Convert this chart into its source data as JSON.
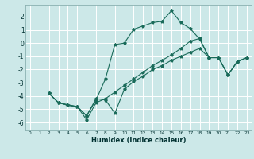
{
  "xlabel": "Humidex (Indice chaleur)",
  "bg_color": "#cce8e8",
  "grid_color": "#ffffff",
  "line_color": "#1a6b5a",
  "xlim": [
    -0.5,
    23.5
  ],
  "ylim": [
    -6.6,
    2.9
  ],
  "xticks": [
    0,
    1,
    2,
    3,
    4,
    5,
    6,
    7,
    8,
    9,
    10,
    11,
    12,
    13,
    14,
    15,
    16,
    17,
    18,
    19,
    20,
    21,
    22,
    23
  ],
  "yticks": [
    -6,
    -5,
    -4,
    -3,
    -2,
    -1,
    0,
    1,
    2
  ],
  "line1": {
    "x": [
      2,
      3,
      4,
      5,
      6,
      7,
      8,
      9,
      10,
      11,
      12,
      13,
      14,
      15,
      16,
      17,
      18,
      19,
      20,
      21,
      22,
      23
    ],
    "y": [
      -3.8,
      -4.5,
      -4.7,
      -4.8,
      -5.5,
      -4.3,
      -2.7,
      -0.1,
      0.0,
      1.05,
      1.3,
      1.55,
      1.65,
      2.45,
      1.55,
      1.1,
      0.3,
      -1.1,
      -1.1,
      -2.4,
      -1.4,
      -1.1
    ]
  },
  "line2": {
    "x": [
      2,
      3,
      5,
      6,
      7,
      8,
      9,
      10,
      11,
      12,
      13,
      14,
      15,
      16,
      17,
      18,
      19,
      20,
      21,
      22,
      23
    ],
    "y": [
      -3.8,
      -4.5,
      -4.8,
      -5.5,
      -4.2,
      -4.3,
      -5.3,
      -3.5,
      -2.9,
      -2.5,
      -2.0,
      -1.7,
      -1.3,
      -1.0,
      -0.7,
      -0.4,
      -1.1,
      -1.1,
      -2.4,
      -1.4,
      -1.1
    ]
  },
  "line3": {
    "x": [
      2,
      3,
      4,
      5,
      6,
      7,
      8,
      9,
      10,
      11,
      12,
      13,
      14,
      15,
      16,
      17,
      18,
      19,
      20,
      21,
      22,
      23
    ],
    "y": [
      -3.8,
      -4.5,
      -4.7,
      -4.8,
      -5.8,
      -4.5,
      -4.2,
      -3.7,
      -3.2,
      -2.7,
      -2.2,
      -1.7,
      -1.3,
      -0.9,
      -0.4,
      0.15,
      0.35,
      -1.1,
      -1.1,
      -2.4,
      -1.4,
      -1.1
    ]
  }
}
